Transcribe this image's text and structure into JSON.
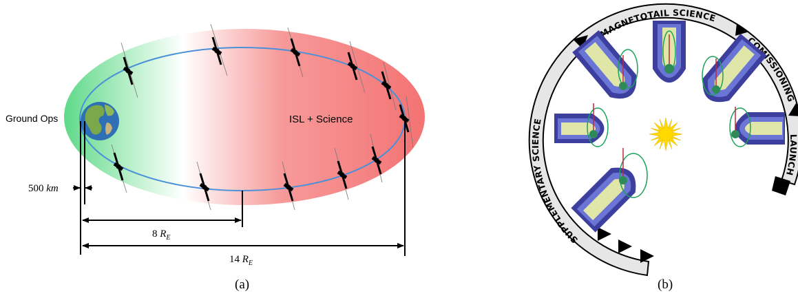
{
  "panel_a": {
    "caption": "(a)",
    "label_ground": "Ground Ops",
    "label_isl": "ISL + Science",
    "dim_500": "500",
    "dim_500_unit": "km",
    "dim_8": "8",
    "dim_14": "14",
    "re_symbol": "R",
    "re_sub": "E"
  },
  "panel_b": {
    "caption": "(b)",
    "arc_magnetotail": "MAGNETOTAIL SCIENCE",
    "arc_commissioning": "COMISSIONING",
    "arc_launch": "LAUNCH",
    "arc_supplementary": "SUPPLEMENTARY SCIENCE"
  },
  "colors": {
    "orbit": "#4a90d9",
    "ground_green": "#6fdc8c",
    "science_red": "#f47a7a",
    "ring_fill": "#e6e6e6",
    "tail_dark": "#3d3f9e",
    "tail_light": "#dfe6a8",
    "sun": "#ffd900"
  }
}
